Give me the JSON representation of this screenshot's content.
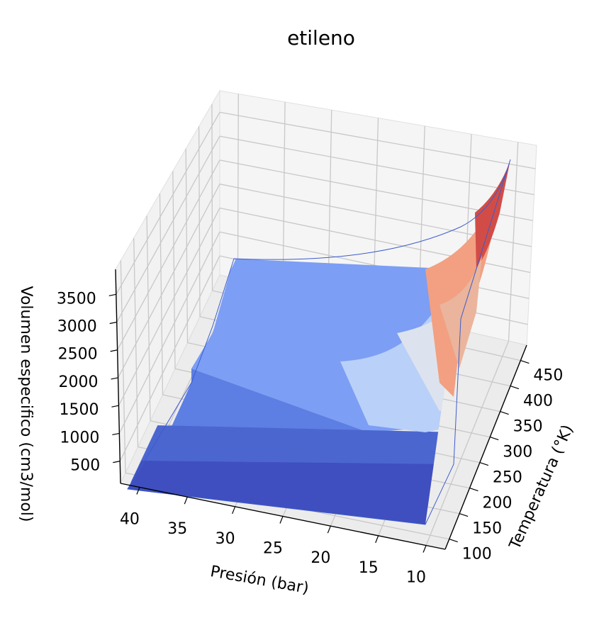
{
  "chart_data": {
    "type": "surface",
    "title": "etileno",
    "xlabel": "Presión (bar)",
    "ylabel": "Temperatura (°K)",
    "zlabel": "Volumen especifico (cm3/mol)",
    "x_ticks": [
      "40",
      "35",
      "30",
      "25",
      "20",
      "15",
      "10"
    ],
    "y_ticks": [
      "100",
      "150",
      "200",
      "250",
      "300",
      "350",
      "400",
      "450"
    ],
    "z_ticks": [
      "500",
      "1000",
      "1500",
      "2000",
      "2500",
      "3000",
      "3500"
    ],
    "xlim": [
      8,
      42
    ],
    "ylim": [
      80,
      480
    ],
    "zlim": [
      100,
      3950
    ],
    "colormap": "coolwarm",
    "grid": true,
    "surface_points": [
      {
        "pressure": 10,
        "temperature": 480,
        "volume": 3900
      },
      {
        "pressure": 10,
        "temperature": 400,
        "volume": 3250
      },
      {
        "pressure": 10,
        "temperature": 300,
        "volume": 2450
      },
      {
        "pressure": 10,
        "temperature": 200,
        "volume": 1600
      },
      {
        "pressure": 10,
        "temperature": 170,
        "volume": 60
      },
      {
        "pressure": 10,
        "temperature": 100,
        "volume": 50
      },
      {
        "pressure": 20,
        "temperature": 480,
        "volume": 1950
      },
      {
        "pressure": 20,
        "temperature": 300,
        "volume": 1150
      },
      {
        "pressure": 20,
        "temperature": 230,
        "volume": 750
      },
      {
        "pressure": 40,
        "temperature": 480,
        "volume": 980
      },
      {
        "pressure": 40,
        "temperature": 300,
        "volume": 560
      },
      {
        "pressure": 40,
        "temperature": 260,
        "volume": 130
      },
      {
        "pressure": 40,
        "temperature": 100,
        "volume": 50
      }
    ]
  }
}
